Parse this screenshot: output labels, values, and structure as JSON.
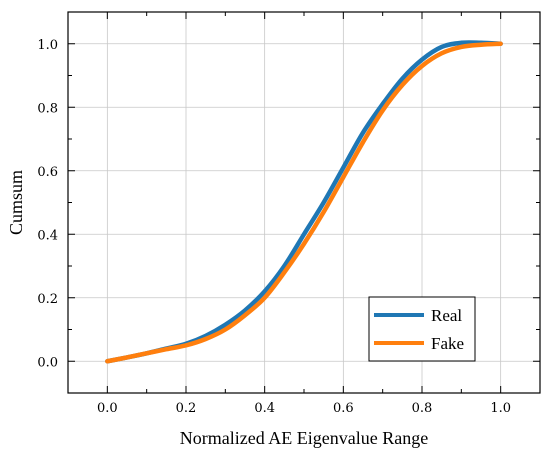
{
  "chart_data": {
    "type": "line",
    "title": "",
    "xlabel": "Normalized AE Eigenvalue Range",
    "ylabel": "Cumsum",
    "xlim": [
      -0.1,
      1.1
    ],
    "ylim": [
      -0.1,
      1.1
    ],
    "x_ticks": [
      "0.0",
      "0.2",
      "0.4",
      "0.6",
      "0.8",
      "1.0"
    ],
    "y_ticks": [
      "0.0",
      "0.2",
      "0.4",
      "0.6",
      "0.8",
      "1.0"
    ],
    "grid": true,
    "legend_position": "bottom-right",
    "series": [
      {
        "name": "Real",
        "color": "#1f77b4",
        "x": [
          0.0,
          0.05,
          0.1,
          0.15,
          0.2,
          0.25,
          0.3,
          0.35,
          0.4,
          0.45,
          0.5,
          0.55,
          0.6,
          0.65,
          0.7,
          0.75,
          0.8,
          0.85,
          0.9,
          0.95,
          1.0
        ],
        "y": [
          0.0,
          0.012,
          0.025,
          0.04,
          0.055,
          0.08,
          0.115,
          0.16,
          0.22,
          0.3,
          0.4,
          0.5,
          0.61,
          0.72,
          0.81,
          0.89,
          0.95,
          0.99,
          1.003,
          1.003,
          1.0
        ]
      },
      {
        "name": "Fake",
        "color": "#ff7f0e",
        "x": [
          0.0,
          0.05,
          0.1,
          0.15,
          0.2,
          0.25,
          0.3,
          0.35,
          0.4,
          0.45,
          0.5,
          0.55,
          0.6,
          0.65,
          0.7,
          0.75,
          0.8,
          0.85,
          0.9,
          0.95,
          1.0
        ],
        "y": [
          0.0,
          0.012,
          0.025,
          0.038,
          0.05,
          0.07,
          0.1,
          0.145,
          0.2,
          0.28,
          0.37,
          0.47,
          0.58,
          0.69,
          0.79,
          0.87,
          0.93,
          0.97,
          0.99,
          0.997,
          1.0
        ]
      }
    ]
  }
}
